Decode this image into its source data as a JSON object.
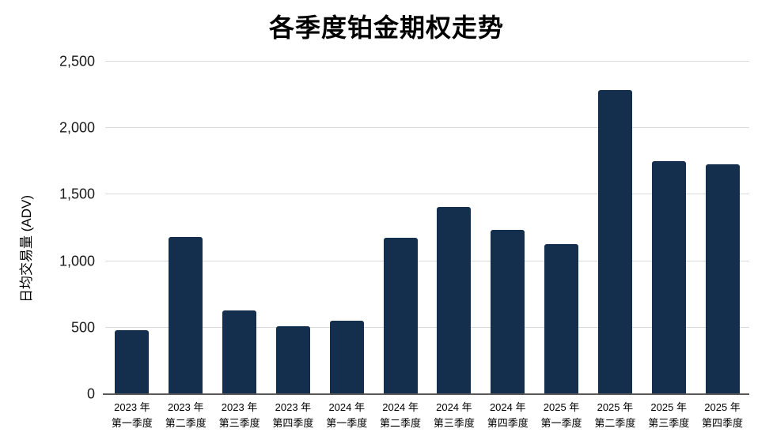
{
  "chart_data": {
    "type": "bar",
    "title": "各季度铂金期权走势",
    "ylabel": "日均交易量 (ADV)",
    "xlabel": "",
    "categories": [
      [
        "2023 年",
        "第一季度"
      ],
      [
        "2023 年",
        "第二季度"
      ],
      [
        "2023 年",
        "第三季度"
      ],
      [
        "2023 年",
        "第四季度"
      ],
      [
        "2024 年",
        "第一季度"
      ],
      [
        "2024 年",
        "第二季度"
      ],
      [
        "2024 年",
        "第三季度"
      ],
      [
        "2024 年",
        "第四季度"
      ],
      [
        "2025 年",
        "第一季度"
      ],
      [
        "2025 年",
        "第二季度"
      ],
      [
        "2025 年",
        "第三季度"
      ],
      [
        "2025 年",
        "第四季度"
      ]
    ],
    "values": [
      480,
      1180,
      630,
      510,
      555,
      1175,
      1410,
      1235,
      1130,
      2285,
      1750,
      1730
    ],
    "ylim": [
      0,
      2500
    ],
    "yticks": [
      0,
      500,
      1000,
      1500,
      2000,
      2500
    ],
    "ytick_labels": [
      "0",
      "500",
      "1,000",
      "1,500",
      "2,000",
      "2,500"
    ],
    "grid": true,
    "legend": false,
    "colors": {
      "bar": "#142e4e",
      "gridline": "#d9d9d9",
      "axis_line": "#595959",
      "text": "#000000"
    }
  }
}
